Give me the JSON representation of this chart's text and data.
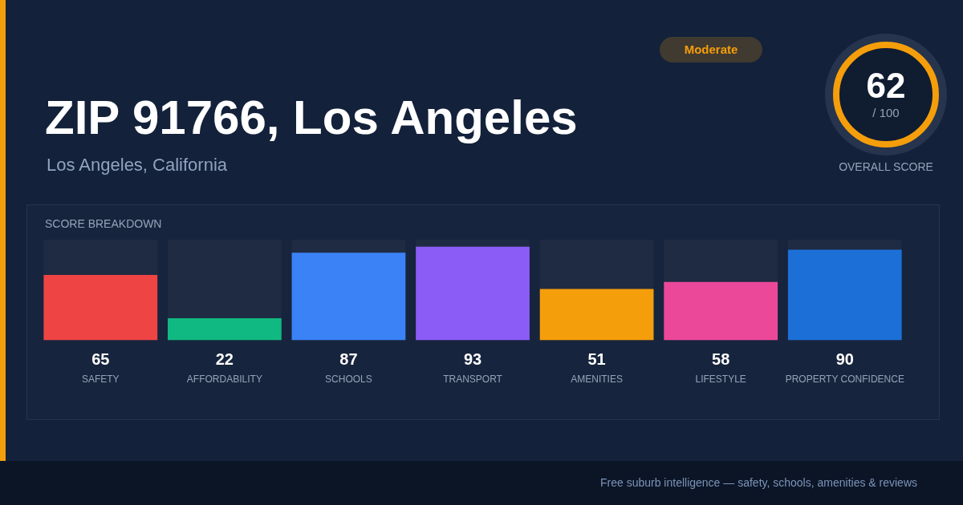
{
  "chart_data": {
    "type": "bar",
    "title": "ZIP 91766, Los Angeles",
    "subtitle": "Los Angeles, California",
    "annotations": [
      "Moderate",
      "62",
      "/ 100",
      "OVERALL SCORE",
      "SCORE BREAKDOWN",
      "Free suburb intelligence — safety, schools, amenities & reviews"
    ],
    "categories": [
      "SAFETY",
      "AFFORDABILITY",
      "SCHOOLS",
      "TRANSPORT",
      "AMENITIES",
      "LIFESTYLE",
      "PROPERTY CONFIDENCE"
    ],
    "values": [
      65,
      22,
      87,
      93,
      51,
      58,
      90
    ],
    "colors": [
      "#ef4444",
      "#10b981",
      "#3b82f6",
      "#8b5cf6",
      "#f59e0b",
      "#ec4899",
      "#1d6fd8"
    ],
    "ylim": [
      0,
      100
    ],
    "data_labels": true
  }
}
